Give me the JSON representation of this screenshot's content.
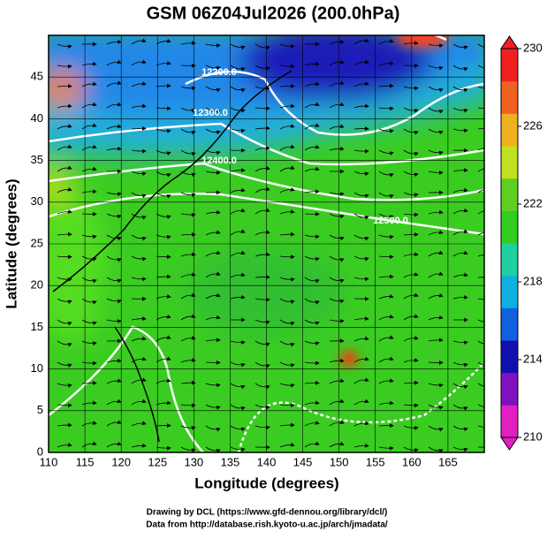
{
  "chart_data": {
    "type": "map",
    "title": "GSM 06Z04Jul2026 (200.0hPa)",
    "xlabel": "Longitude (degrees)",
    "ylabel": "Latitude  (degrees)",
    "xlim": [
      110,
      170
    ],
    "xticks": [
      110,
      115,
      120,
      125,
      130,
      135,
      140,
      145,
      150,
      155,
      160,
      165
    ],
    "ylim": [
      0,
      50
    ],
    "yticks": [
      0,
      5,
      10,
      15,
      20,
      25,
      30,
      35,
      40,
      45
    ],
    "grid": true,
    "colorbar": {
      "lim": [
        210,
        230
      ],
      "ticks": [
        210,
        214,
        218,
        222,
        226,
        230
      ]
    },
    "contour_labels": [
      "12200.0",
      "12300.0",
      "12400.0",
      "12500.0"
    ],
    "credits": [
      "Drawing by DCL (https://www.gfd-dennou.org/library/dcl/)",
      "Data from http://database.rish.kyoto-u.ac.jp/arch/jmadata/"
    ]
  }
}
